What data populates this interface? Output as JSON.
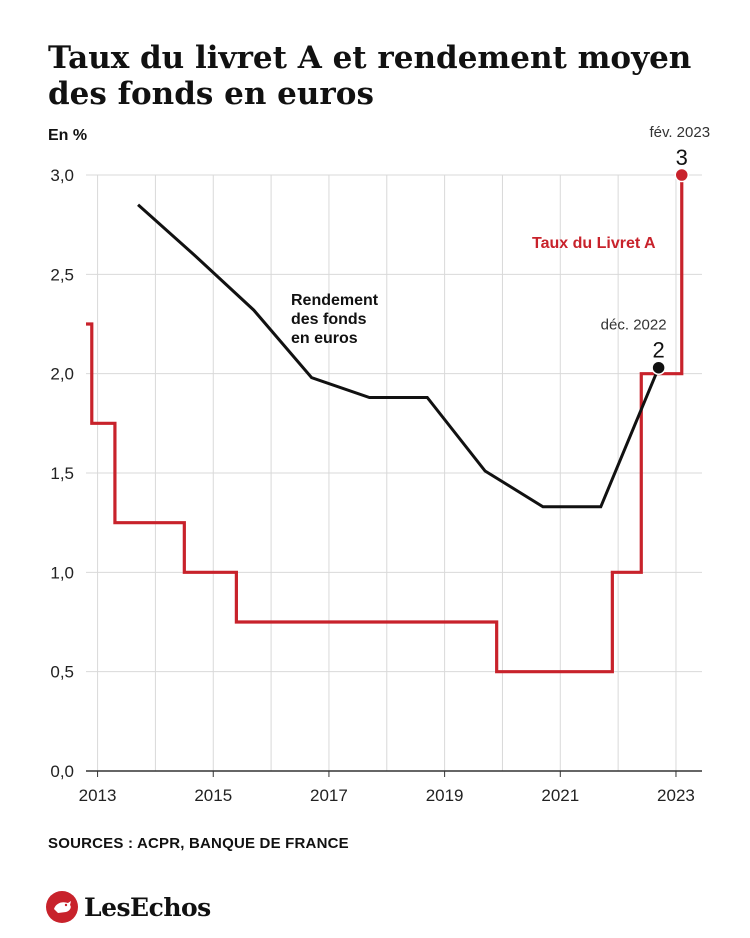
{
  "title": "Taux du livret A et rendement moyen des fonds en euros",
  "source": "SOURCES : ACPR, BANQUE DE FRANCE",
  "logo": {
    "text": "LesEchos",
    "icon": "les-echos-logo-icon"
  },
  "colors": {
    "red": "#c8222b",
    "black": "#111111",
    "grid": "#d9d9d9",
    "axis": "#333333"
  },
  "chart_data": {
    "type": "line",
    "title": "Taux du livret A et rendement moyen des fonds en euros",
    "ylabel": "En %",
    "xlabel": "",
    "ylim": [
      0,
      3
    ],
    "xlim": [
      2012.8,
      2023.45
    ],
    "y_ticks": [
      0,
      0.5,
      1,
      1.5,
      2,
      2.5,
      3
    ],
    "y_tick_labels": [
      "0,0",
      "0,5",
      "1,0",
      "1,5",
      "2,0",
      "2,5",
      "3,0"
    ],
    "x_ticks": [
      2013,
      2015,
      2017,
      2019,
      2021,
      2023
    ],
    "x_tick_labels": [
      "2013",
      "2015",
      "2017",
      "2019",
      "2021",
      "2023"
    ],
    "grid": true,
    "series": [
      {
        "name": "Taux du Livret A",
        "color": "#c8222b",
        "step": true,
        "x": [
          2012.8,
          2012.9,
          2013.3,
          2013.9,
          2014.5,
          2015.4,
          2019.9,
          2021.9,
          2022.4,
          2022.9,
          2023.1
        ],
        "y": [
          2.25,
          1.75,
          1.25,
          1.25,
          1.0,
          0.75,
          0.5,
          1.0,
          2.0,
          2.0,
          3.0
        ]
      },
      {
        "name": "Rendement des fonds en euros",
        "color": "#111111",
        "step": false,
        "x": [
          2013.7,
          2014.7,
          2015.7,
          2016.7,
          2017.7,
          2018.7,
          2019.7,
          2020.7,
          2021.7,
          2022.7
        ],
        "y": [
          2.85,
          2.59,
          2.32,
          1.98,
          1.88,
          1.88,
          1.51,
          1.33,
          1.33,
          2.03
        ]
      }
    ],
    "annotations": [
      {
        "label": "fév. 2023",
        "value_label": "3",
        "x": 2023.1,
        "y": 3.0,
        "color": "#c8222b"
      },
      {
        "label": "déc. 2022",
        "value_label": "2",
        "x": 2022.7,
        "y": 2.03,
        "color": "#111111"
      }
    ]
  }
}
